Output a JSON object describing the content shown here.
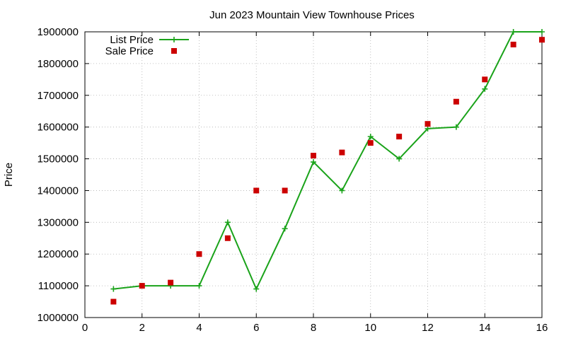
{
  "chart_data": {
    "type": "line",
    "title": "Jun 2023 Mountain View Townhouse Prices",
    "xlabel": "",
    "ylabel": "Price",
    "xlim": [
      0,
      16
    ],
    "ylim": [
      1000000,
      1900000
    ],
    "x_ticks": [
      0,
      2,
      4,
      6,
      8,
      10,
      12,
      14,
      16
    ],
    "y_ticks": [
      1000000,
      1100000,
      1200000,
      1300000,
      1400000,
      1500000,
      1600000,
      1700000,
      1800000,
      1900000
    ],
    "grid": true,
    "legend_position": "top-left",
    "series": [
      {
        "name": "List Price",
        "style": "line-with-plus-markers",
        "color": "#1aa31a",
        "x": [
          1,
          2,
          3,
          4,
          5,
          6,
          7,
          8,
          9,
          10,
          11,
          12,
          13,
          14,
          15,
          16
        ],
        "values": [
          1090000,
          1100000,
          1100000,
          1100000,
          1300000,
          1090000,
          1280000,
          1490000,
          1400000,
          1570000,
          1500000,
          1595000,
          1600000,
          1720000,
          1900000,
          1900000
        ]
      },
      {
        "name": "Sale Price",
        "style": "square-markers",
        "color": "#cc0000",
        "x": [
          1,
          2,
          3,
          4,
          5,
          6,
          7,
          8,
          9,
          10,
          11,
          12,
          13,
          14,
          15,
          16
        ],
        "values": [
          1050000,
          1100000,
          1110000,
          1200000,
          1250000,
          1400000,
          1400000,
          1510000,
          1520000,
          1550000,
          1570000,
          1610000,
          1680000,
          1750000,
          1860000,
          1875000
        ]
      }
    ]
  }
}
